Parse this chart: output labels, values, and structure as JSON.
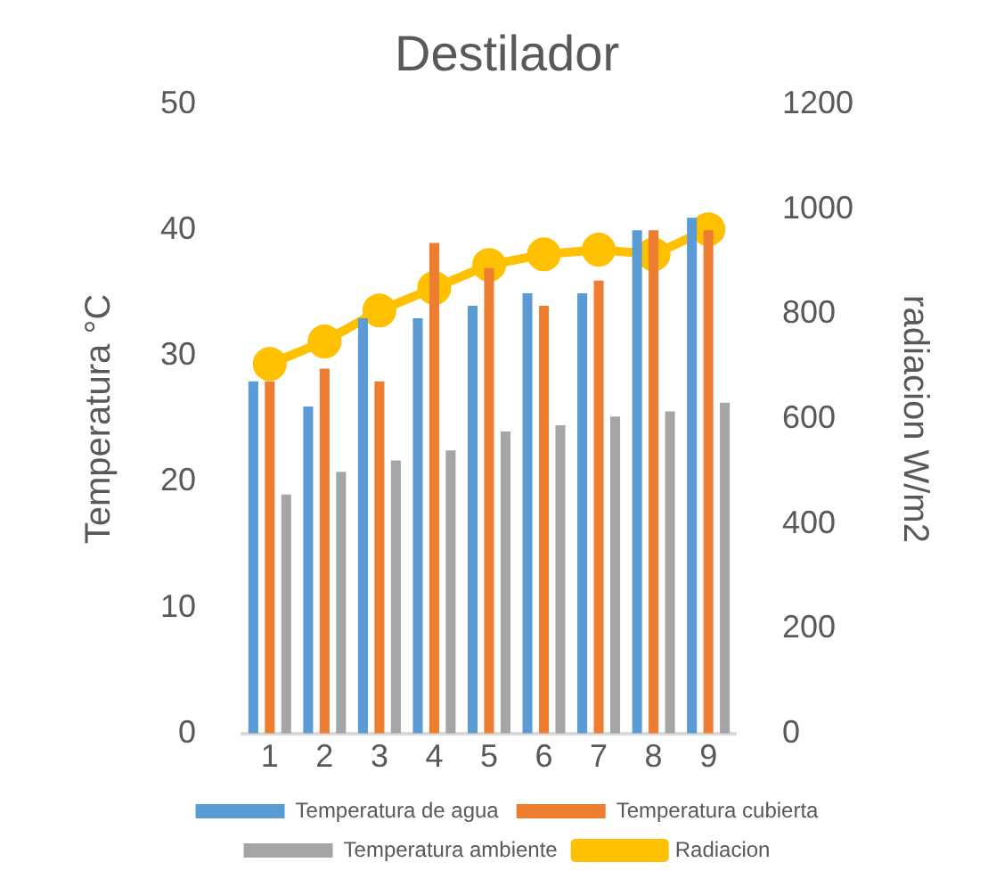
{
  "chart_data": {
    "type": "bar",
    "title": "Destilador",
    "ylabel": "Temperatura °C",
    "y2label": "radiacion W/m2",
    "categories": [
      "1",
      "2",
      "3",
      "4",
      "5",
      "6",
      "7",
      "8",
      "9"
    ],
    "series": [
      {
        "name": "Temperatura de agua",
        "color": "#5b9bd5",
        "values": [
          28,
          26,
          33,
          33,
          34,
          35,
          35,
          40,
          41
        ]
      },
      {
        "name": "Temperatura cubierta",
        "color": "#ed7d31",
        "values": [
          28,
          29,
          28,
          39,
          37,
          34,
          36,
          40,
          40
        ]
      },
      {
        "name": "Temperatura ambiente",
        "color": "#a5a5a5",
        "values": [
          19,
          20.8,
          21.7,
          22.5,
          24,
          24.5,
          25.2,
          25.6,
          26.3
        ]
      },
      {
        "name": "Radiacion",
        "type": "line",
        "axis": "y2",
        "color": "#ffc000",
        "marker": "circle",
        "values": [
          705,
          748,
          807,
          850,
          894,
          914,
          923,
          914,
          962
        ]
      }
    ],
    "ylim": [
      0,
      50
    ],
    "yticks": [
      0,
      10,
      20,
      30,
      40,
      50
    ],
    "y2lim": [
      0,
      1200
    ],
    "y2ticks": [
      0,
      200,
      400,
      600,
      800,
      1000,
      1200
    ],
    "grid": false,
    "legend": "bottom"
  }
}
